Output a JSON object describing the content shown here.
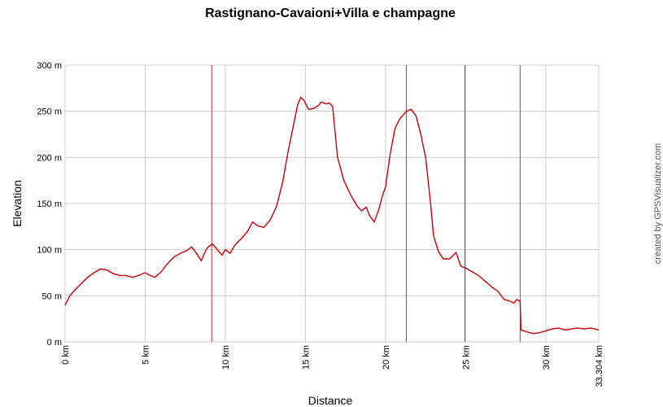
{
  "chart_data": {
    "type": "line",
    "title": "Rastignano-Cavaioni+Villa e champagne",
    "xlabel": "Distance",
    "ylabel": "Elevation",
    "credit": "created by GPSVisualizer.com",
    "xlim": [
      0,
      33.304
    ],
    "ylim": [
      0,
      300
    ],
    "grid": true,
    "x_ticks": [
      {
        "value": 0,
        "label": "0 km"
      },
      {
        "value": 5,
        "label": "5 km"
      },
      {
        "value": 10,
        "label": "10 km"
      },
      {
        "value": 15,
        "label": "15 km"
      },
      {
        "value": 20,
        "label": "20 km"
      },
      {
        "value": 25,
        "label": "25 km"
      },
      {
        "value": 30,
        "label": "30 km"
      },
      {
        "value": 33.304,
        "label": "33.304 km"
      }
    ],
    "y_ticks": [
      {
        "value": 0,
        "label": "0 m"
      },
      {
        "value": 50,
        "label": "50 m"
      },
      {
        "value": 100,
        "label": "100 m"
      },
      {
        "value": 150,
        "label": "150 m"
      },
      {
        "value": 200,
        "label": "200 m"
      },
      {
        "value": 250,
        "label": "250 m"
      },
      {
        "value": 300,
        "label": "300 m"
      }
    ],
    "markers_x": [
      9.15,
      21.3,
      24.95,
      28.4
    ],
    "colors": {
      "line": "#cc0000",
      "marker": "#cc3333",
      "grid": "#cccccc"
    },
    "series": [
      {
        "x": [
          0,
          0.3,
          0.6,
          1.0,
          1.4,
          1.8,
          2.2,
          2.6,
          3.0,
          3.4,
          3.8,
          4.2,
          4.6,
          5.0,
          5.3,
          5.6,
          6.0,
          6.4,
          6.8,
          7.2,
          7.6,
          7.9,
          8.2,
          8.5,
          8.8,
          9.0,
          9.2,
          9.4,
          9.6,
          9.8,
          10.0,
          10.3,
          10.6,
          11.0,
          11.4,
          11.7,
          12.0,
          12.4,
          12.8,
          13.2,
          13.6,
          13.9,
          14.2,
          14.5,
          14.7,
          14.9,
          15.2,
          15.5,
          15.8,
          16.0,
          16.3,
          16.5,
          16.7,
          17.0,
          17.4,
          17.8,
          18.2,
          18.5,
          18.8,
          19.0,
          19.3,
          19.6,
          19.8,
          20.0,
          20.3,
          20.6,
          20.9,
          21.1,
          21.3,
          21.6,
          21.9,
          22.2,
          22.5,
          22.8,
          23.0,
          23.3,
          23.6,
          24.0,
          24.4,
          24.7,
          25.0,
          25.4,
          25.8,
          26.2,
          26.6,
          27.0,
          27.4,
          27.8,
          28.0,
          28.2,
          28.4,
          28.45,
          28.8,
          29.2,
          29.6,
          30.0,
          30.4,
          30.8,
          31.2,
          31.6,
          32.0,
          32.4,
          32.8,
          33.304
        ],
        "y": [
          40,
          50,
          56,
          63,
          70,
          75,
          79,
          78,
          74,
          72,
          72,
          70,
          72,
          75,
          72,
          70,
          76,
          85,
          92,
          96,
          99,
          103,
          96,
          88,
          100,
          104,
          106,
          102,
          98,
          94,
          100,
          96,
          105,
          112,
          120,
          130,
          126,
          124,
          132,
          147,
          175,
          205,
          230,
          256,
          265,
          262,
          252,
          253,
          256,
          260,
          258,
          259,
          255,
          200,
          175,
          160,
          148,
          142,
          146,
          137,
          130,
          145,
          158,
          168,
          205,
          232,
          242,
          246,
          250,
          252,
          245,
          225,
          200,
          152,
          115,
          98,
          90,
          90,
          97,
          82,
          80,
          76,
          72,
          66,
          60,
          55,
          46,
          44,
          42,
          46,
          44,
          13,
          11,
          9,
          10,
          12,
          14,
          15,
          13,
          14,
          15,
          14,
          15,
          13
        ]
      }
    ]
  }
}
